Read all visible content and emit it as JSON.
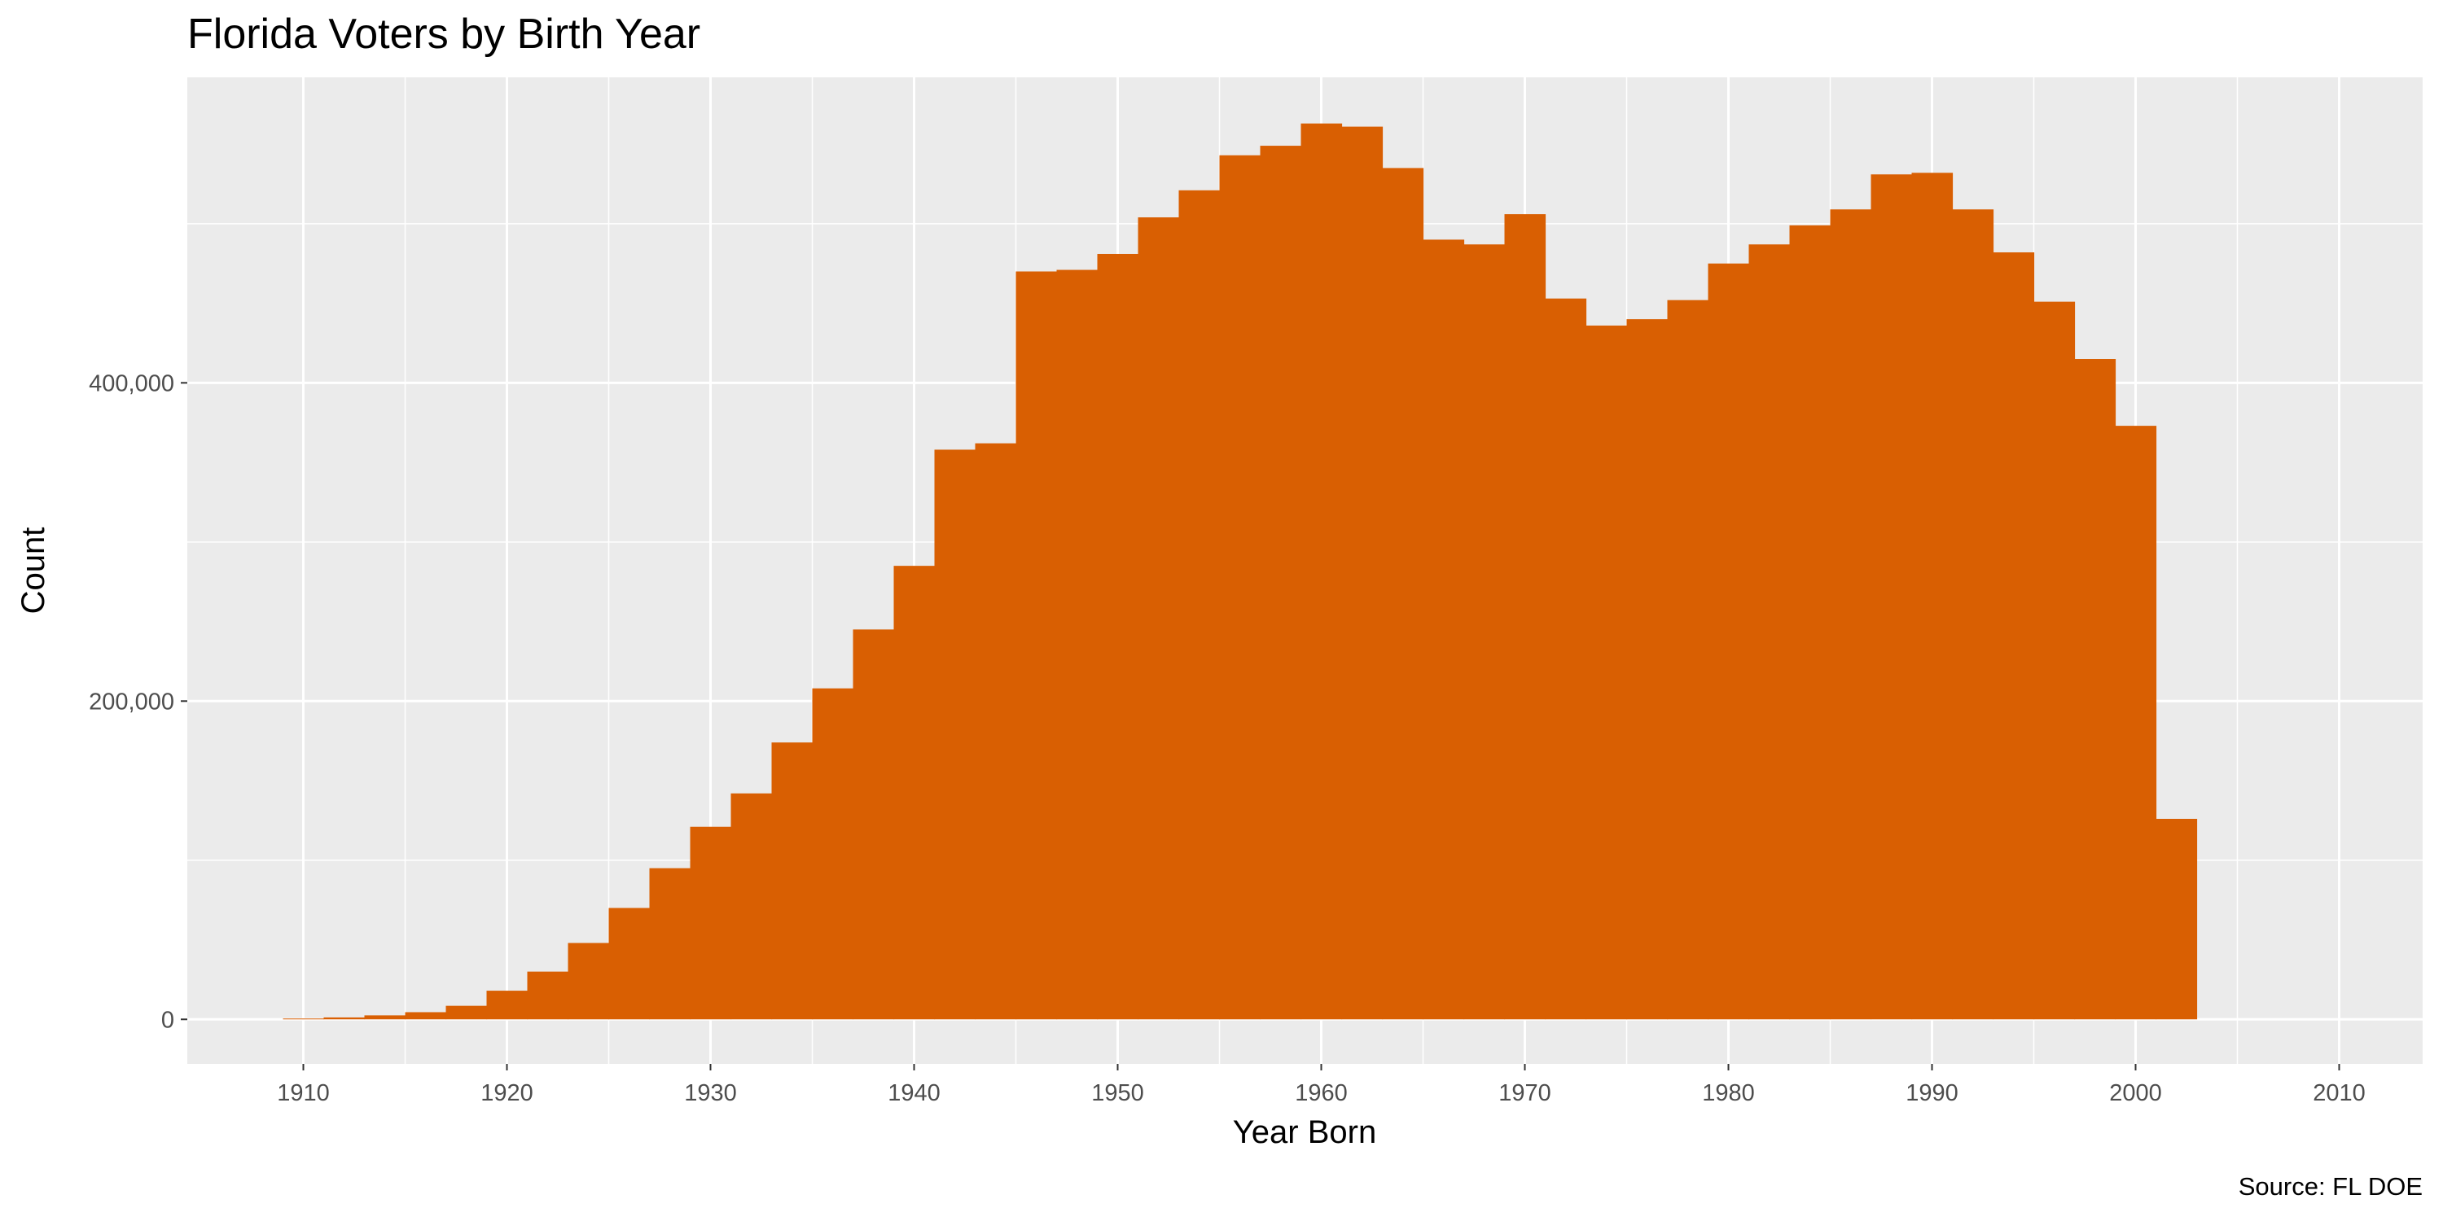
{
  "chart_data": {
    "type": "bar",
    "title": "Florida Voters by Birth Year",
    "xlabel": "Year Born",
    "ylabel": "Count",
    "caption": "Source: FL DOE",
    "bar_color": "#D95F02",
    "panel_background": "#EBEBEB",
    "grid_color": "#FFFFFF",
    "grid": true,
    "xlim": [
      1904.3,
      2014.1
    ],
    "ylim": [
      -28000,
      592000
    ],
    "x_ticks": [
      1910,
      1920,
      1930,
      1940,
      1950,
      1960,
      1970,
      1980,
      1990,
      2000,
      2010
    ],
    "x_tick_labels": [
      "1910",
      "1920",
      "1930",
      "1940",
      "1950",
      "1960",
      "1970",
      "1980",
      "1990",
      "2000",
      "2010"
    ],
    "y_ticks": [
      0,
      200000,
      400000
    ],
    "y_tick_labels": [
      "0",
      "200,000",
      "400,000"
    ],
    "bin_width": 2,
    "bin_starts": [
      1909,
      1911,
      1913,
      1915,
      1917,
      1919,
      1921,
      1923,
      1925,
      1927,
      1929,
      1931,
      1933,
      1935,
      1937,
      1939,
      1941,
      1943,
      1945,
      1947,
      1949,
      1951,
      1953,
      1955,
      1957,
      1959,
      1961,
      1963,
      1965,
      1967,
      1969,
      1971,
      1973,
      1975,
      1977,
      1979,
      1981,
      1983,
      1985,
      1987,
      1989,
      1991,
      1993,
      1995,
      1997,
      1999,
      2001
    ],
    "values": [
      500,
      1200,
      2500,
      4500,
      8500,
      18000,
      30000,
      48000,
      70000,
      95000,
      121000,
      142000,
      174000,
      208000,
      245000,
      285000,
      358000,
      362000,
      470000,
      471000,
      481000,
      504000,
      521000,
      543000,
      549000,
      563000,
      561000,
      535000,
      490000,
      487000,
      506000,
      453000,
      436000,
      440000,
      452000,
      475000,
      487000,
      499000,
      509000,
      531000,
      532000,
      509000,
      482000,
      451000,
      415000,
      373000,
      126000
    ]
  }
}
